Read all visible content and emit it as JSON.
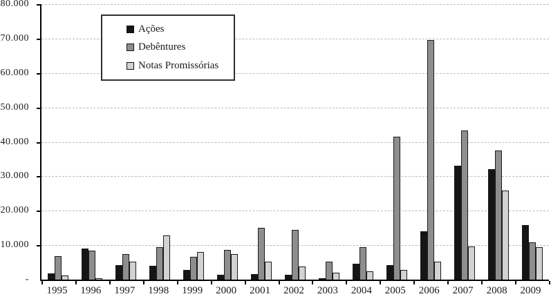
{
  "chart_data": {
    "type": "bar",
    "title": "",
    "xlabel": "",
    "ylabel": "",
    "categories": [
      "1995",
      "1996",
      "1997",
      "1998",
      "1999",
      "2000",
      "2001",
      "2002",
      "2003",
      "2004",
      "2005",
      "2006",
      "2007",
      "2008",
      "2009"
    ],
    "series": [
      {
        "name": "Ações",
        "color": "#151515",
        "values": [
          1900,
          9100,
          4200,
          4100,
          2900,
          1500,
          1600,
          1400,
          500,
          4600,
          4300,
          14000,
          33100,
          32100,
          15900
        ]
      },
      {
        "name": "Debêntures",
        "color": "#8e8e8e",
        "values": [
          6800,
          8400,
          7400,
          9500,
          6600,
          8700,
          15100,
          14500,
          5300,
          9500,
          41500,
          69500,
          43400,
          37400,
          10900
        ]
      },
      {
        "name": "Notas Promissórias",
        "color": "#d2d2d2",
        "values": [
          1200,
          500,
          5200,
          12800,
          8000,
          7400,
          5300,
          3900,
          2100,
          2400,
          2800,
          5300,
          9600,
          25900,
          9400
        ]
      }
    ],
    "ylim": [
      0,
      80000
    ],
    "ytick_interval": 10000,
    "yticks": [
      {
        "value": 0,
        "label": "-"
      },
      {
        "value": 10000,
        "label": "10.000"
      },
      {
        "value": 20000,
        "label": "20.000"
      },
      {
        "value": 30000,
        "label": "30.000"
      },
      {
        "value": 40000,
        "label": "40.000"
      },
      {
        "value": 50000,
        "label": "50.000"
      },
      {
        "value": 60000,
        "label": "60.000"
      },
      {
        "value": 70000,
        "label": "70.000"
      },
      {
        "value": 80000,
        "label": "80.000"
      }
    ],
    "grid": "horizontal-dashed",
    "legend_position": "top-left"
  },
  "colors": {
    "background": "#ffffff",
    "axis": "#000000",
    "gridline": "#b9b9b9",
    "text": "#1a1a1a"
  }
}
